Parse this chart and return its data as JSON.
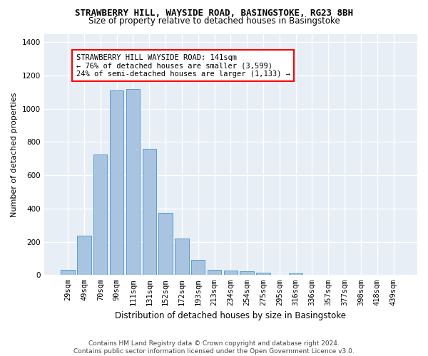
{
  "title": "STRAWBERRY HILL, WAYSIDE ROAD, BASINGSTOKE, RG23 8BH",
  "subtitle": "Size of property relative to detached houses in Basingstoke",
  "xlabel": "Distribution of detached houses by size in Basingstoke",
  "ylabel": "Number of detached properties",
  "categories": [
    "29sqm",
    "49sqm",
    "70sqm",
    "90sqm",
    "111sqm",
    "131sqm",
    "152sqm",
    "172sqm",
    "193sqm",
    "213sqm",
    "234sqm",
    "254sqm",
    "275sqm",
    "295sqm",
    "316sqm",
    "336sqm",
    "357sqm",
    "377sqm",
    "398sqm",
    "418sqm",
    "439sqm"
  ],
  "values": [
    30,
    235,
    725,
    1110,
    1120,
    760,
    375,
    220,
    90,
    30,
    25,
    22,
    15,
    0,
    12,
    0,
    0,
    0,
    0,
    0,
    0
  ],
  "bar_color": "#a8c4e0",
  "bar_edge_color": "#5b9bd5",
  "annotation_text": "STRAWBERRY HILL WAYSIDE ROAD: 141sqm\n← 76% of detached houses are smaller (3,599)\n24% of semi-detached houses are larger (1,133) →",
  "annotation_box_color": "white",
  "annotation_box_edge_color": "red",
  "ylim": [
    0,
    1450
  ],
  "yticks": [
    0,
    200,
    400,
    600,
    800,
    1000,
    1200,
    1400
  ],
  "background_color": "#e8eef5",
  "footnote": "Contains HM Land Registry data © Crown copyright and database right 2024.\nContains public sector information licensed under the Open Government Licence v3.0.",
  "title_fontsize": 9,
  "subtitle_fontsize": 8.5,
  "xlabel_fontsize": 8.5,
  "ylabel_fontsize": 8,
  "tick_fontsize": 7.5,
  "annotation_fontsize": 7.5,
  "footnote_fontsize": 6.5
}
